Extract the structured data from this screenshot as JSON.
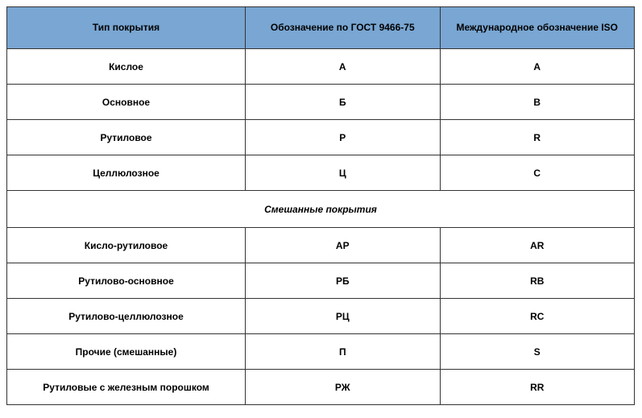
{
  "table": {
    "type": "table",
    "header_bg": "#79a6d2",
    "border_color": "#333333",
    "font_family": "Verdana",
    "header_fontsize": 12,
    "cell_fontsize": 12,
    "columns": [
      {
        "label": "Тип покрытия",
        "width_pct": 38
      },
      {
        "label": "Обозначение по ГОСТ 9466-75",
        "width_pct": 31
      },
      {
        "label": "Международное обозначение ISO",
        "width_pct": 31
      }
    ],
    "rows_top": [
      {
        "type": "Кислое",
        "gost": "А",
        "iso": "A"
      },
      {
        "type": "Основное",
        "gost": "Б",
        "iso": "B"
      },
      {
        "type": "Рутиловое",
        "gost": "Р",
        "iso": "R"
      },
      {
        "type": "Целлюлозное",
        "gost": "Ц",
        "iso": "C"
      }
    ],
    "section_label": "Смешанные покрытия",
    "rows_bottom": [
      {
        "type": "Кисло-рутиловое",
        "gost": "АР",
        "iso": "AR"
      },
      {
        "type": "Рутилово-основное",
        "gost": "РБ",
        "iso": "RB"
      },
      {
        "type": "Рутилово-целлюлозное",
        "gost": "РЦ",
        "iso": "RC"
      },
      {
        "type": "Прочие (смешанные)",
        "gost": "П",
        "iso": "S"
      },
      {
        "type": "Рутиловые с железным порошком",
        "gost": "РЖ",
        "iso": "RR"
      }
    ]
  }
}
